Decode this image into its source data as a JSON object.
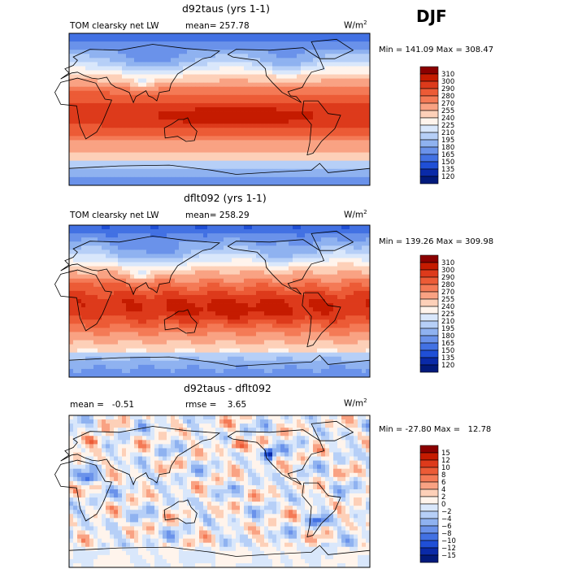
{
  "season": "DJF",
  "panels": [
    {
      "title": "d92taus (yrs 1-1)",
      "left_label": "TOM clearsky net LW",
      "stat_text": "mean= 257.78",
      "units": "W/m²",
      "minmax": "Min = 141.09 Max = 308.47",
      "colorbar": {
        "levels": [
          "310",
          "300",
          "290",
          "280",
          "270",
          "255",
          "240",
          "225",
          "210",
          "195",
          "180",
          "165",
          "150",
          "135",
          "120"
        ],
        "colors": [
          "#8b0000",
          "#c51b00",
          "#dd3a1b",
          "#ec5b36",
          "#f47a56",
          "#f9a283",
          "#fdd0b8",
          "#fff4ec",
          "#d9e7fb",
          "#b6cff7",
          "#8fb2f0",
          "#6a92ea",
          "#4271e3",
          "#1f4fd6",
          "#0a2aa8",
          "#021a7c"
        ]
      }
    },
    {
      "title": "dflt092 (yrs 1-1)",
      "left_label": "TOM clearsky net LW",
      "stat_text": "mean= 258.29",
      "units": "W/m²",
      "minmax": "Min = 139.26 Max = 309.98",
      "colorbar": {
        "levels": [
          "310",
          "300",
          "290",
          "280",
          "270",
          "255",
          "240",
          "225",
          "210",
          "195",
          "180",
          "165",
          "150",
          "135",
          "120"
        ],
        "colors": [
          "#8b0000",
          "#c51b00",
          "#dd3a1b",
          "#ec5b36",
          "#f47a56",
          "#f9a283",
          "#fdd0b8",
          "#fff4ec",
          "#d9e7fb",
          "#b6cff7",
          "#8fb2f0",
          "#6a92ea",
          "#4271e3",
          "#1f4fd6",
          "#0a2aa8",
          "#021a7c"
        ]
      }
    },
    {
      "title": "d92taus - dflt092",
      "mean_text": "mean =   -0.51",
      "rmse_text": "rmse =    3.65",
      "units": "W/m²",
      "minmax": "Min = -27.80 Max =   12.78",
      "colorbar": {
        "levels": [
          "15",
          "12",
          "10",
          "8",
          "6",
          "4",
          "2",
          "0",
          "−2",
          "−4",
          "−6",
          "−8",
          "−10",
          "−12",
          "−15"
        ],
        "colors": [
          "#8b0000",
          "#c51b00",
          "#dd3a1b",
          "#ec5b36",
          "#f47a56",
          "#f9a283",
          "#fdd0b8",
          "#fff4ec",
          "#d9e7fb",
          "#b6cff7",
          "#8fb2f0",
          "#6a92ea",
          "#4271e3",
          "#1f4fd6",
          "#0a2aa8",
          "#021a7c"
        ]
      }
    }
  ],
  "chart_data": [
    {
      "type": "heatmap",
      "title": "d92taus (yrs 1-1)",
      "variable": "TOM clearsky net LW",
      "units": "W/m2",
      "mean": 257.78,
      "min": 141.09,
      "max": 308.47,
      "contour_levels": [
        120,
        135,
        150,
        165,
        180,
        195,
        210,
        225,
        240,
        255,
        270,
        280,
        290,
        300,
        310
      ]
    },
    {
      "type": "heatmap",
      "title": "dflt092 (yrs 1-1)",
      "variable": "TOM clearsky net LW",
      "units": "W/m2",
      "mean": 258.29,
      "min": 139.26,
      "max": 309.98,
      "contour_levels": [
        120,
        135,
        150,
        165,
        180,
        195,
        210,
        225,
        240,
        255,
        270,
        280,
        290,
        300,
        310
      ]
    },
    {
      "type": "heatmap",
      "title": "d92taus - dflt092",
      "units": "W/m2",
      "mean": -0.51,
      "rmse": 3.65,
      "min": -27.8,
      "max": 12.78,
      "contour_levels": [
        -15,
        -12,
        -10,
        -8,
        -6,
        -4,
        -2,
        0,
        2,
        4,
        6,
        8,
        10,
        12,
        15
      ]
    }
  ]
}
